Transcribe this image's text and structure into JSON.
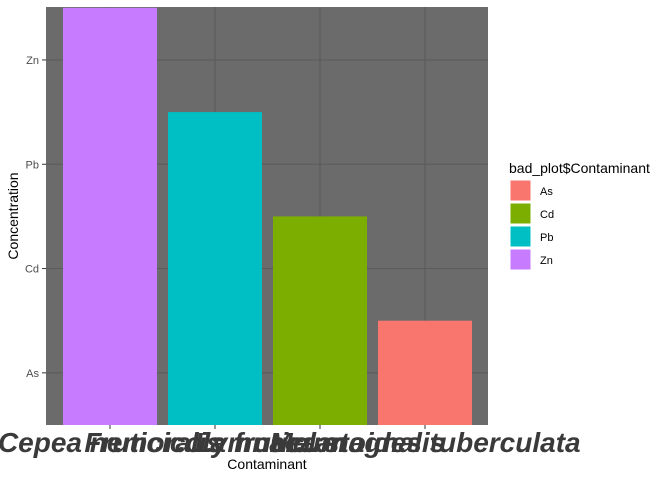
{
  "chart_data": {
    "type": "bar",
    "xlabel": "Contaminant",
    "ylabel": "Concentration",
    "categories": [
      "Cepea nemoralis",
      "Fruticicola fruticum",
      "Lymnaea stagnalis",
      "Melanoides tuberculata"
    ],
    "x_tick_labels": [
      "Cepea nemoralis",
      "Fruticicola fruticum",
      "Lymnaea stagnalis",
      "Melanoides tuberculata"
    ],
    "series_fill": [
      "Zn",
      "Pb",
      "Cd",
      "As"
    ],
    "values": [
      4,
      3,
      2,
      1
    ],
    "y_levels": [
      "As",
      "Cd",
      "Pb",
      "Zn"
    ],
    "y_tick_labels": [
      "As",
      "Cd",
      "Pb",
      "Zn"
    ],
    "ylim": [
      0,
      4
    ],
    "grid": true,
    "legend": {
      "title": "bad_plot$Contaminant",
      "position": "right",
      "items": [
        {
          "label": "As",
          "color": "#F8766D"
        },
        {
          "label": "Cd",
          "color": "#7CAE00"
        },
        {
          "label": "Pb",
          "color": "#00BFC4"
        },
        {
          "label": "Zn",
          "color": "#C77CFF"
        }
      ]
    },
    "colors": {
      "panel_background": "#6b6b6b",
      "grid": "#5a5a5a"
    }
  }
}
